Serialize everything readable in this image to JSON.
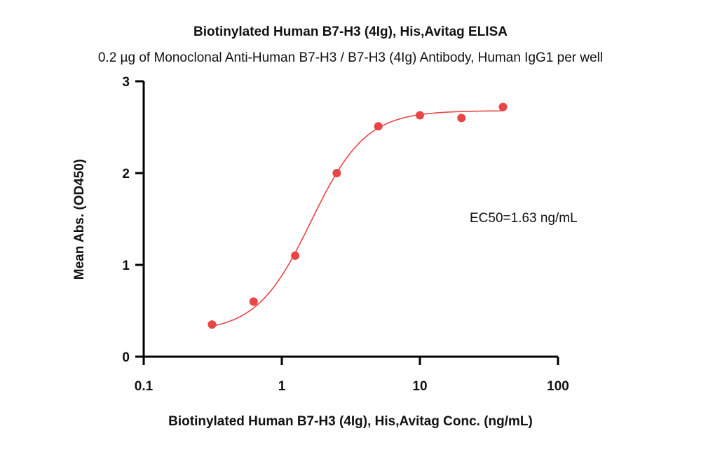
{
  "chart_data": {
    "type": "scatter",
    "title": "Biotinylated Human B7-H3 (4Ig), His,Avitag ELISA",
    "subtitle": "0.2 µg of Monoclonal Anti-Human B7-H3 / B7-H3 (4Ig) Antibody, Human IgG1 per well",
    "xlabel": "Biotinylated Human B7-H3 (4Ig), His,Avitag Conc. (ng/mL)",
    "ylabel": "Mean Abs. (OD450)",
    "x_scale": "log",
    "xlim": [
      0.1,
      100
    ],
    "ylim": [
      0,
      3
    ],
    "x_ticks": [
      {
        "value": 0.1,
        "label": "0.1"
      },
      {
        "value": 1,
        "label": "1"
      },
      {
        "value": 10,
        "label": "10"
      },
      {
        "value": 100,
        "label": "100"
      }
    ],
    "y_ticks": [
      {
        "value": 0,
        "label": "0"
      },
      {
        "value": 1,
        "label": "1"
      },
      {
        "value": 2,
        "label": "2"
      },
      {
        "value": 3,
        "label": "3"
      }
    ],
    "grid": false,
    "legend": "none",
    "color": "#e84545",
    "points": [
      {
        "x": 0.3125,
        "y": 0.35
      },
      {
        "x": 0.625,
        "y": 0.6
      },
      {
        "x": 1.25,
        "y": 1.1
      },
      {
        "x": 2.5,
        "y": 2.0
      },
      {
        "x": 5,
        "y": 2.51
      },
      {
        "x": 10,
        "y": 2.63
      },
      {
        "x": 20,
        "y": 2.6
      },
      {
        "x": 40,
        "y": 2.72
      }
    ],
    "fit": {
      "model": "4PL",
      "bottom": 0.27,
      "top": 2.68,
      "ec50": 1.63,
      "hill": 2.2,
      "x_range": [
        0.3125,
        40
      ]
    },
    "annotation": "EC50=1.63 ng/mL"
  }
}
